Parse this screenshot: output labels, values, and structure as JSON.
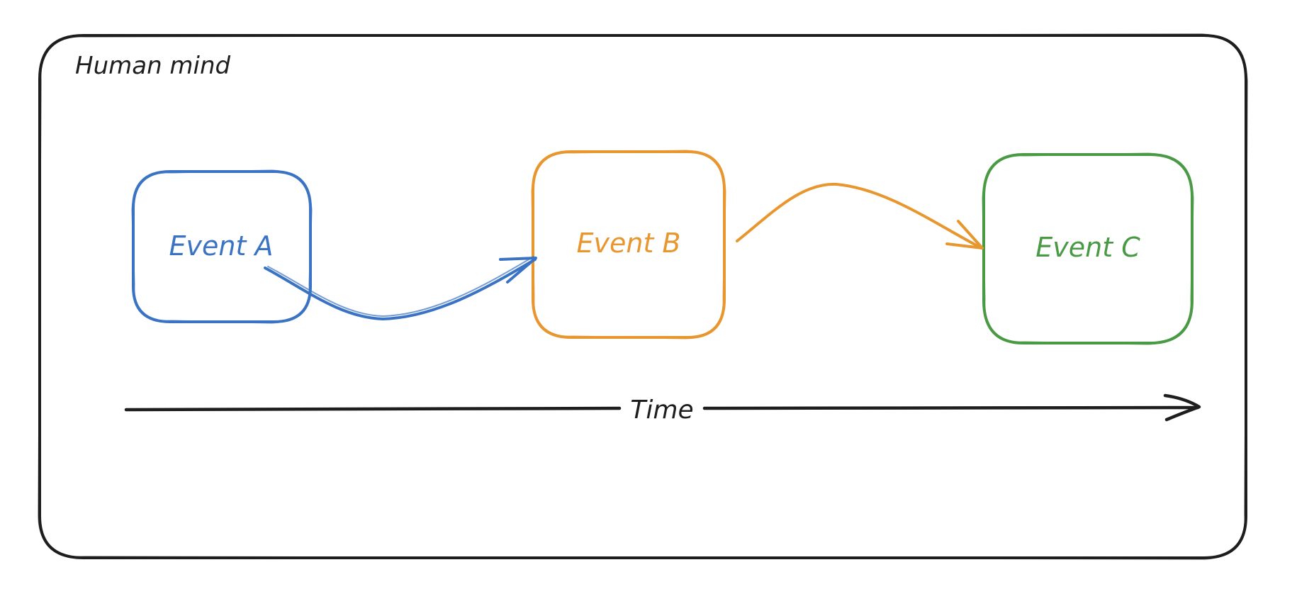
{
  "container": {
    "label": "Human mind",
    "color": "#1e1e1e"
  },
  "events": [
    {
      "id": "a",
      "label": "Event A",
      "color": "#3b73c4"
    },
    {
      "id": "b",
      "label": "Event B",
      "color": "#e8962e"
    },
    {
      "id": "c",
      "label": "Event C",
      "color": "#4a9a45"
    }
  ],
  "connections": [
    {
      "from": "Event A",
      "to": "Event B",
      "color": "#3b73c4"
    },
    {
      "from": "Event B",
      "to": "Event C",
      "color": "#e8962e"
    }
  ],
  "time_axis": {
    "label": "Time",
    "color": "#1e1e1e"
  }
}
